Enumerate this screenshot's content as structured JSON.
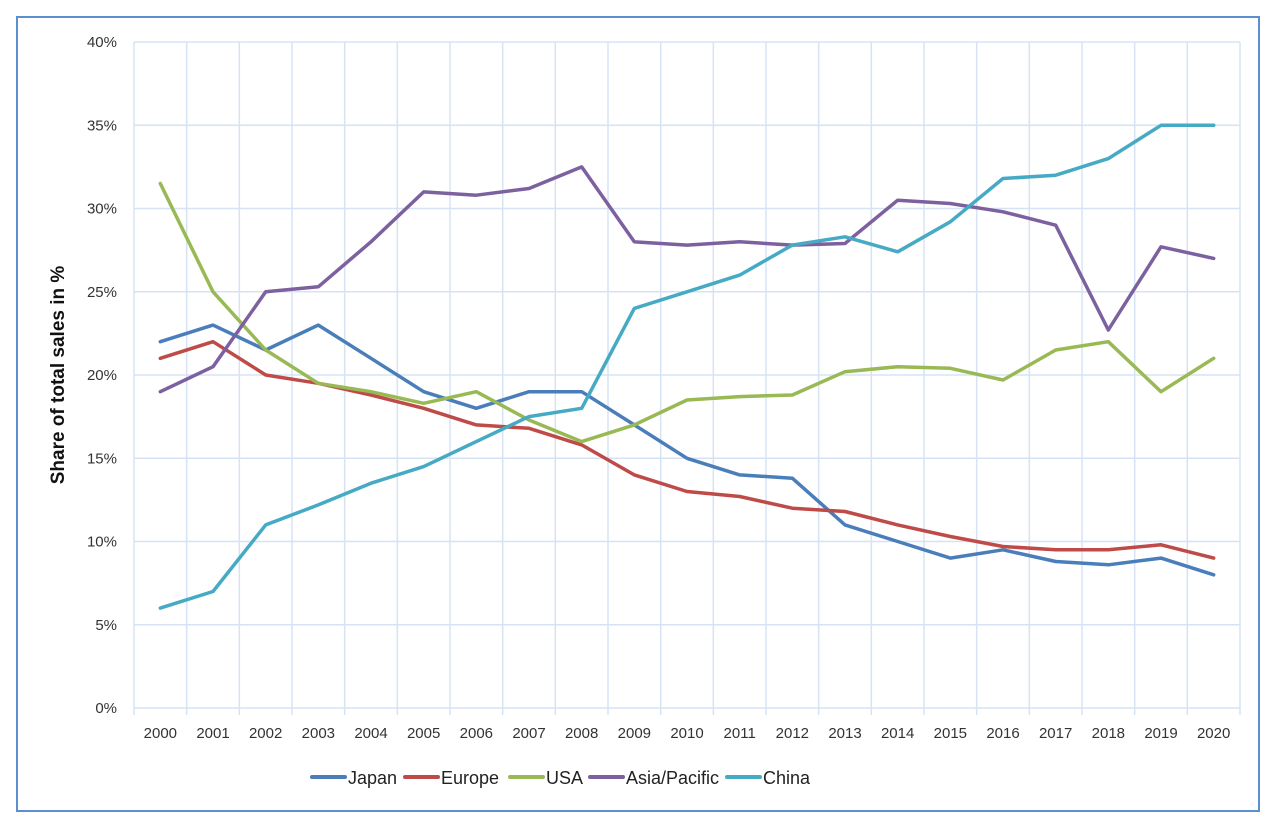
{
  "chart_data": {
    "type": "line",
    "title": "",
    "xlabel": "",
    "ylabel": "Share of total sales in %",
    "ylim": [
      0,
      40
    ],
    "yticks": [
      "0%",
      "5%",
      "10%",
      "15%",
      "20%",
      "25%",
      "30%",
      "35%",
      "40%"
    ],
    "grid": true,
    "legend_position": "bottom",
    "categories": [
      "2000",
      "2001",
      "2002",
      "2003",
      "2004",
      "2005",
      "2006",
      "2007",
      "2008",
      "2009",
      "2010",
      "2011",
      "2012",
      "2013",
      "2014",
      "2015",
      "2016",
      "2017",
      "2018",
      "2019",
      "2020"
    ],
    "series": [
      {
        "name": "Japan",
        "color": "#4a7ebb",
        "values": [
          22,
          23,
          21.5,
          23,
          21,
          19,
          18,
          19,
          19,
          17,
          15,
          14,
          13.8,
          11,
          10,
          9,
          9.5,
          8.8,
          8.6,
          9,
          8
        ]
      },
      {
        "name": "Europe",
        "color": "#be4b48",
        "values": [
          21,
          22,
          20,
          19.5,
          18.8,
          18,
          17,
          16.8,
          15.8,
          14,
          13,
          12.7,
          12,
          11.8,
          11,
          10.3,
          9.7,
          9.5,
          9.5,
          9.8,
          9
        ]
      },
      {
        "name": "USA",
        "color": "#98b954",
        "values": [
          31.5,
          25,
          21.5,
          19.5,
          19,
          18.3,
          19,
          17.3,
          16,
          17,
          18.5,
          18.7,
          18.8,
          20.2,
          20.5,
          20.4,
          19.7,
          21.5,
          22,
          19,
          21
        ]
      },
      {
        "name": "Asia/Pacific",
        "color": "#7d60a0",
        "values": [
          19,
          20.5,
          25,
          25.3,
          28,
          31,
          30.8,
          31.2,
          32.5,
          28,
          27.8,
          28,
          27.8,
          27.9,
          30.5,
          30.3,
          29.8,
          29,
          22.7,
          27.7,
          27
        ]
      },
      {
        "name": "China",
        "color": "#46aac5",
        "values": [
          6,
          7,
          11,
          12.2,
          13.5,
          14.5,
          16,
          17.5,
          18,
          24,
          25,
          26,
          27.8,
          28.3,
          27.4,
          29.2,
          31.8,
          32,
          33,
          35,
          35
        ]
      }
    ]
  }
}
